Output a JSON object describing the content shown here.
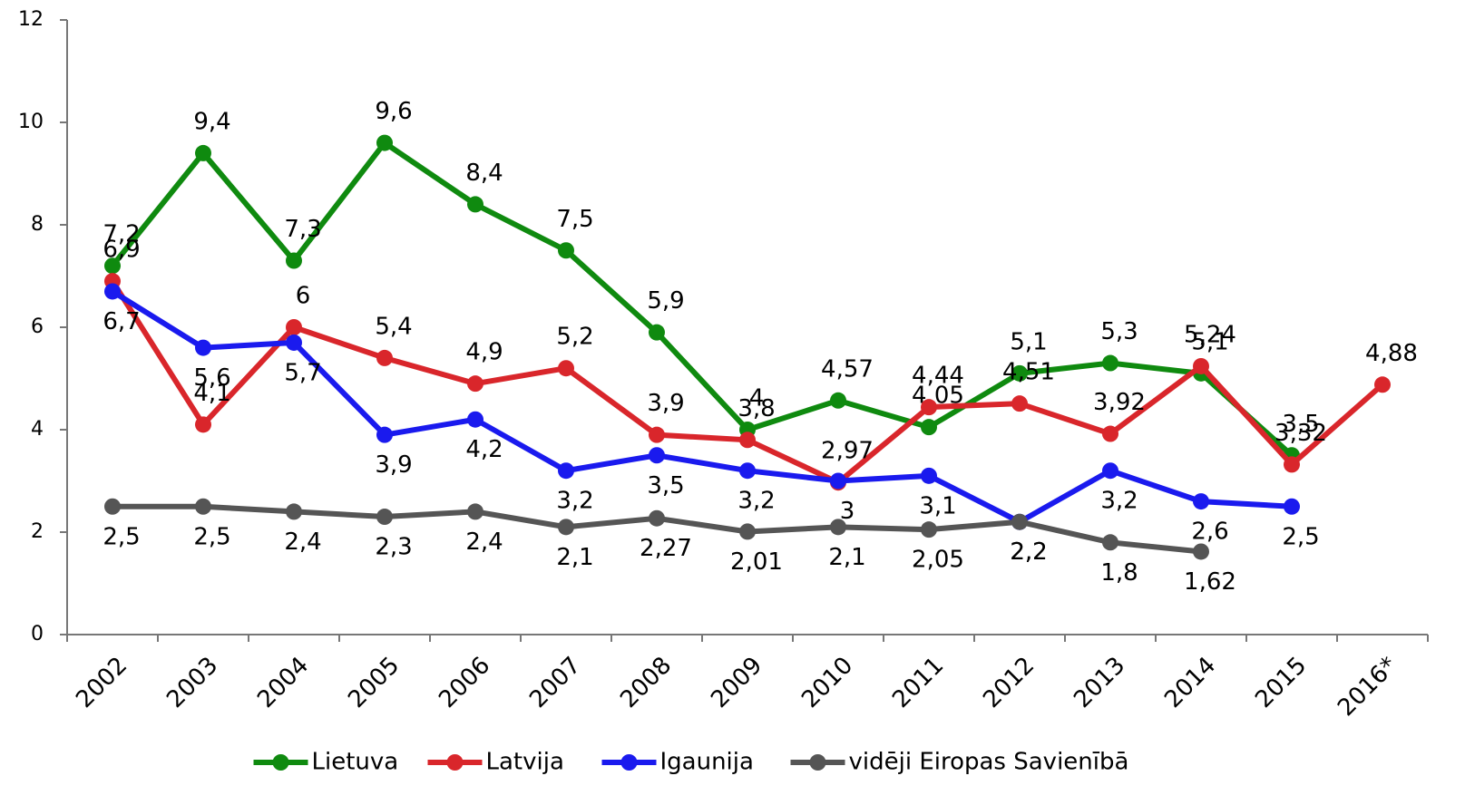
{
  "chart_data": {
    "type": "line",
    "categories": [
      "2002",
      "2003",
      "2004",
      "2005",
      "2006",
      "2007",
      "2008",
      "2009",
      "2010",
      "2011",
      "2012",
      "2013",
      "2014",
      "2015",
      "2016*"
    ],
    "ylim": [
      0,
      12
    ],
    "yticks": [
      0,
      2,
      4,
      6,
      8,
      10,
      12
    ],
    "grid": false,
    "legend": "bottom",
    "series": [
      {
        "name": "Lietuva",
        "color": "#0f8a0f",
        "values": [
          7.2,
          9.4,
          7.3,
          9.6,
          8.4,
          7.5,
          5.9,
          4,
          4.57,
          4.05,
          5.1,
          5.3,
          5.1,
          3.5,
          null
        ],
        "value_labels": [
          "7,2",
          "9,4",
          "7,3",
          "9,6",
          "8,4",
          "7,5",
          "5,9",
          "4",
          "4,57",
          "4,05",
          "5,1",
          "5,3",
          "5,1",
          "3,5",
          null
        ]
      },
      {
        "name": "Latvija",
        "color": "#d9262b",
        "values": [
          6.9,
          4.1,
          6,
          5.4,
          4.9,
          5.2,
          3.9,
          3.8,
          2.97,
          4.44,
          4.51,
          3.92,
          5.24,
          3.32,
          4.88
        ],
        "value_labels": [
          "6,9",
          "4,1",
          "6",
          "5,4",
          "4,9",
          "5,2",
          "3,9",
          "3,8",
          "2,97",
          "4,44",
          "4,51",
          "3,92",
          "5,24",
          "3,32",
          "4,88"
        ]
      },
      {
        "name": "Igaunija",
        "color": "#1a1aee",
        "values": [
          6.7,
          5.6,
          5.7,
          3.9,
          4.2,
          3.2,
          3.5,
          3.2,
          3,
          3.1,
          2.2,
          3.2,
          2.6,
          2.5,
          null
        ],
        "value_labels": [
          "6,7",
          "5,6",
          "5,7",
          "3,9",
          "4,2",
          "3,2",
          "3,5",
          "3,2",
          "3",
          "3,1",
          "2,2",
          "3,2",
          "2,6",
          "2,5",
          null
        ]
      },
      {
        "name": "vidēji Eiropas Savienībā",
        "color": "#555555",
        "values": [
          2.5,
          2.5,
          2.4,
          2.3,
          2.4,
          2.1,
          2.27,
          2.01,
          2.1,
          2.05,
          2.2,
          1.8,
          1.62,
          null,
          null
        ],
        "value_labels": [
          "2,5",
          "2,5",
          "2,4",
          "2,3",
          "2,4",
          "2,1",
          "2,27",
          "2,01",
          "2,1",
          "2,05",
          "2,2",
          "1,8",
          "1,62",
          null,
          null
        ]
      }
    ]
  }
}
